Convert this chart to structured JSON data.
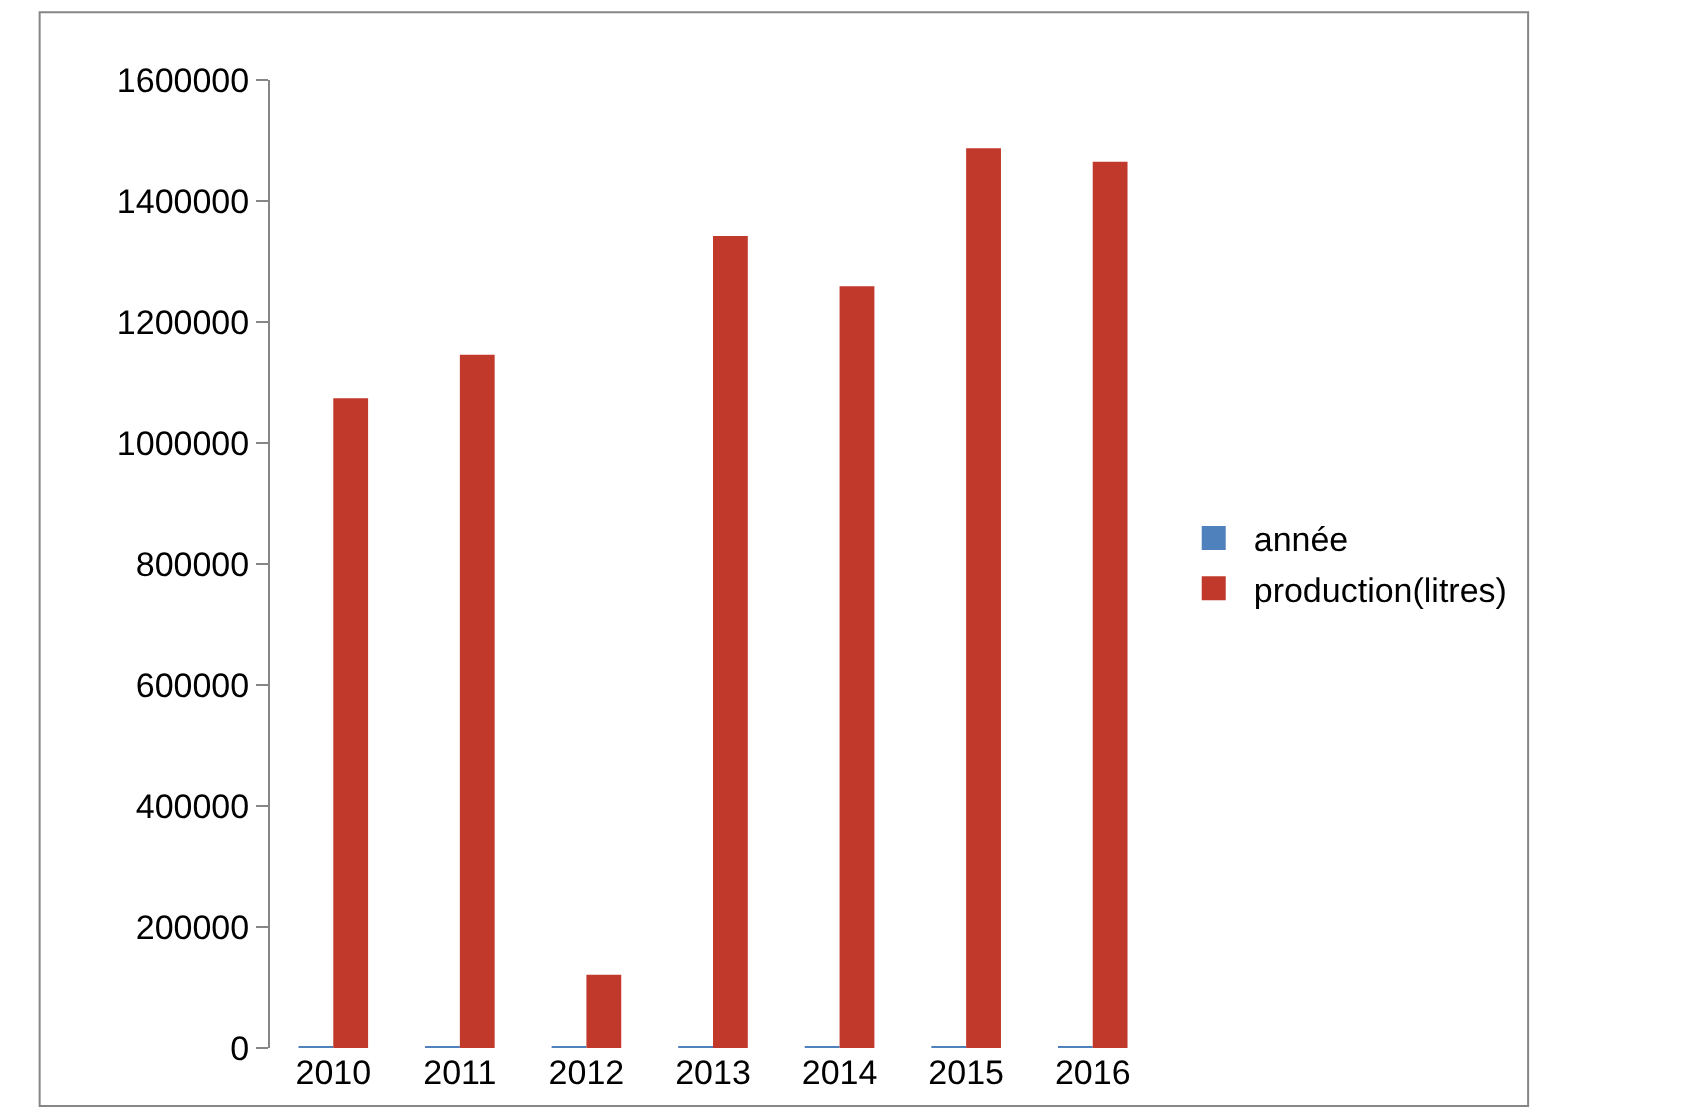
{
  "chart_data": {
    "type": "bar",
    "categories": [
      "2010",
      "2011",
      "2012",
      "2013",
      "2014",
      "2015",
      "2016"
    ],
    "series": [
      {
        "name": "année",
        "color": "#4f81bd",
        "values": [
          2010,
          2011,
          2012,
          2013,
          2014,
          2015,
          2016
        ]
      },
      {
        "name": "production(litres)",
        "color": "#c0392b",
        "values": [
          1074000,
          1146000,
          121000,
          1342000,
          1259000,
          1487000,
          1465000
        ]
      }
    ],
    "ylim": [
      0,
      1600000
    ],
    "yticks": [
      0,
      200000,
      400000,
      600000,
      800000,
      1000000,
      1200000,
      1400000,
      1600000
    ],
    "legend": "right"
  }
}
